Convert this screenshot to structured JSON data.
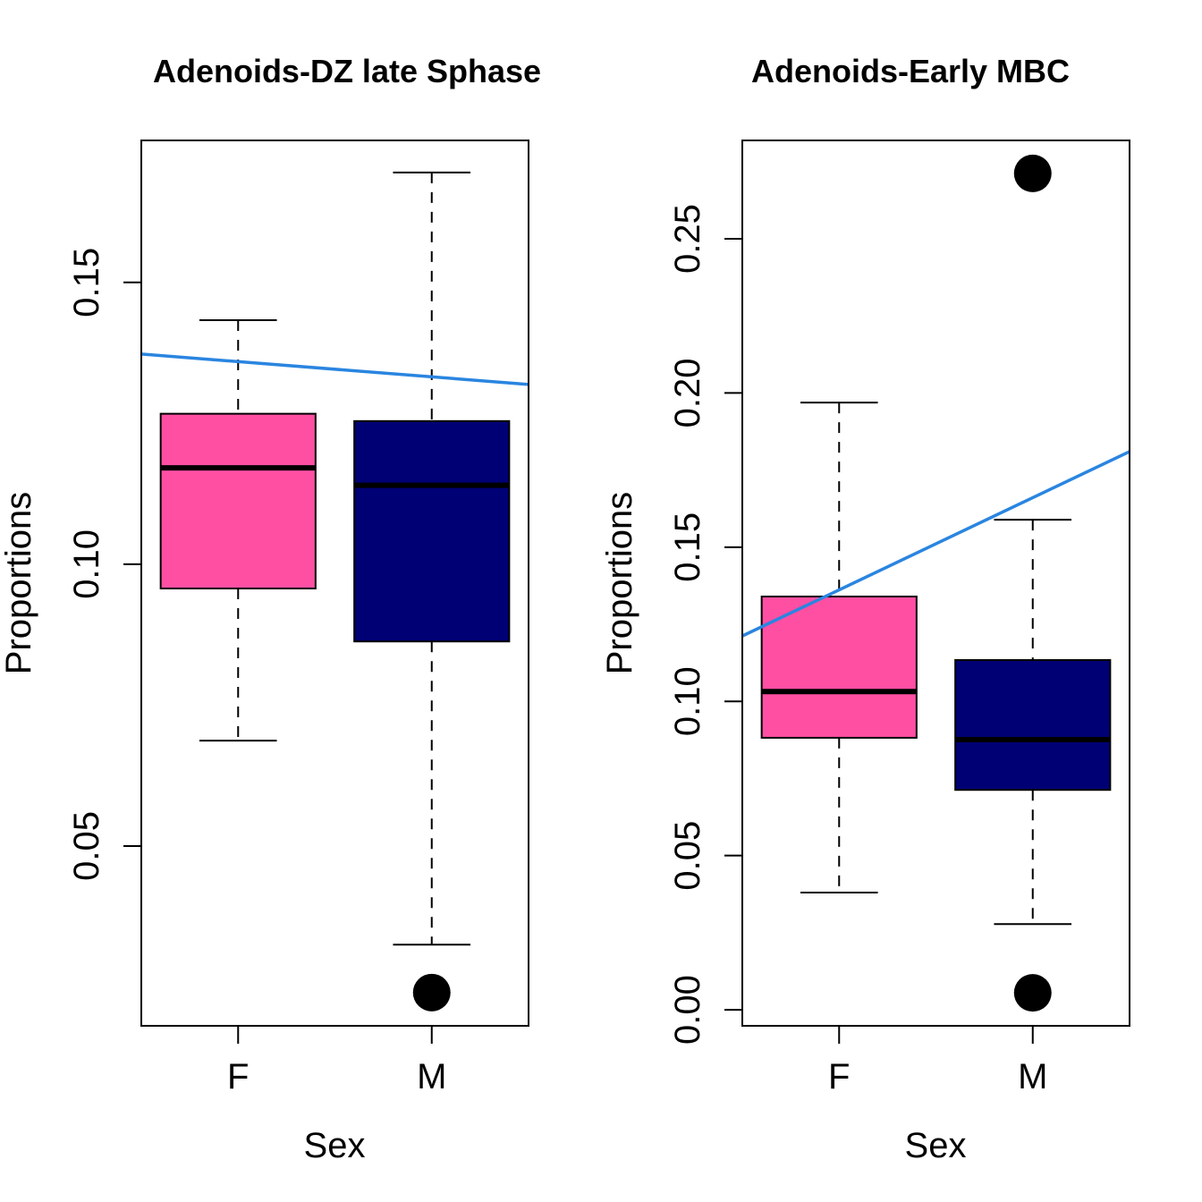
{
  "chart_data": [
    {
      "type": "box",
      "title": "Adenoids-DZ late Sphase",
      "xlabel": "Sex",
      "ylabel": "Proportions",
      "categories": [
        "F",
        "M"
      ],
      "ylim": [
        0.0181,
        0.1752
      ],
      "yticks": [
        0.05,
        0.1,
        0.15
      ],
      "ytick_labels": [
        "0.05",
        "0.10",
        "0.15"
      ],
      "grid": false,
      "boxes": [
        {
          "category": "F",
          "whisker_low": 0.0687,
          "q1": 0.0957,
          "median": 0.1171,
          "q3": 0.1267,
          "whisker_high": 0.1433,
          "outliers": [],
          "color": "#FF4FA3"
        },
        {
          "category": "M",
          "whisker_low": 0.0325,
          "q1": 0.0863,
          "median": 0.114,
          "q3": 0.1254,
          "whisker_high": 0.1695,
          "outliers": [
            0.024
          ],
          "color": "#000075"
        }
      ],
      "trend_line": {
        "color": "#2A85E0",
        "y_at_left_edge": 0.1373,
        "y_at_right_edge": 0.1319
      }
    },
    {
      "type": "box",
      "title": "Adenoids-Early MBC",
      "xlabel": "Sex",
      "ylabel": "Proportions",
      "categories": [
        "F",
        "M"
      ],
      "ylim": [
        -0.0052,
        0.2819
      ],
      "yticks": [
        0.0,
        0.05,
        0.1,
        0.15,
        0.2,
        0.25
      ],
      "ytick_labels": [
        "0.00",
        "0.05",
        "0.10",
        "0.15",
        "0.20",
        "0.25"
      ],
      "grid": false,
      "boxes": [
        {
          "category": "F",
          "whisker_low": 0.038,
          "q1": 0.0882,
          "median": 0.1032,
          "q3": 0.134,
          "whisker_high": 0.1969,
          "outliers": [],
          "color": "#FF4FA3"
        },
        {
          "category": "M",
          "whisker_low": 0.0278,
          "q1": 0.0713,
          "median": 0.0876,
          "q3": 0.1134,
          "whisker_high": 0.1589,
          "outliers": [
            0.2712,
            0.0055
          ],
          "color": "#000075"
        }
      ],
      "trend_line": {
        "color": "#2A85E0",
        "y_at_left_edge": 0.1212,
        "y_at_right_edge": 0.181
      }
    }
  ]
}
